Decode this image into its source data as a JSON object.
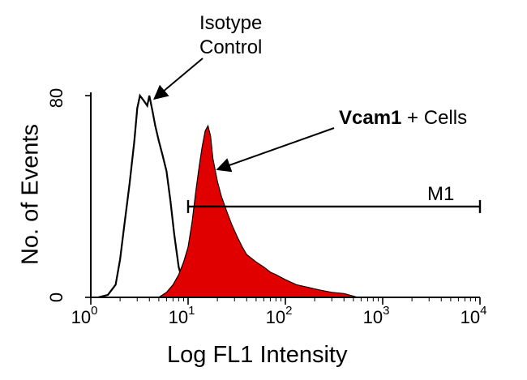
{
  "chart_data": {
    "type": "area",
    "title": "",
    "xlabel": "Log FL1 Intensity",
    "ylabel": "No. of Events",
    "xscale": "log",
    "xlim": [
      1,
      10000
    ],
    "ylim": [
      0,
      80
    ],
    "x_ticks": [
      {
        "base": "10",
        "exp": "0"
      },
      {
        "base": "10",
        "exp": "1"
      },
      {
        "base": "10",
        "exp": "2"
      },
      {
        "base": "10",
        "exp": "3"
      },
      {
        "base": "10",
        "exp": "4"
      }
    ],
    "y_ticks": [
      "0",
      "80"
    ],
    "grid": false,
    "series": [
      {
        "style": "outline",
        "color": "#000000",
        "x": [
          1.2,
          1.5,
          1.8,
          2.0,
          2.2,
          2.5,
          2.8,
          3.0,
          3.2,
          3.5,
          3.8,
          4.0,
          4.3,
          4.6,
          5.0,
          5.5,
          6.0,
          6.6,
          7.2,
          8.0,
          9.0,
          10.0,
          11.0,
          12.0
        ],
        "values": [
          0,
          1,
          5,
          15,
          28,
          45,
          62,
          75,
          80,
          78,
          76,
          80,
          74,
          68,
          62,
          56,
          50,
          38,
          25,
          12,
          5,
          2,
          0.5,
          0
        ]
      },
      {
        "style": "filled",
        "color": "#e00000",
        "x": [
          5,
          6,
          7,
          8,
          9,
          10,
          11,
          12,
          13,
          14,
          15,
          16,
          17,
          18,
          20,
          22,
          25,
          28,
          32,
          36,
          40,
          50,
          60,
          70,
          80,
          100,
          130,
          170,
          220,
          300,
          400,
          500,
          550
        ],
        "values": [
          0,
          2,
          5,
          9,
          14,
          20,
          30,
          42,
          52,
          60,
          66,
          68,
          64,
          55,
          46,
          40,
          34,
          29,
          24,
          20,
          17,
          14,
          12,
          10,
          9,
          7,
          5,
          4,
          3,
          2,
          1.5,
          0.5,
          0
        ]
      }
    ],
    "gate": {
      "label": "M1",
      "x_start": 10,
      "x_end": 10000,
      "y": 36
    },
    "annotations": [
      {
        "lines": [
          "Isotype",
          "Control"
        ],
        "points_to_x": 4.5,
        "points_to_y": 80
      },
      {
        "bold": "Vcam1",
        "text": " + Cells",
        "points_to_x": 20,
        "points_to_y": 52
      }
    ]
  }
}
